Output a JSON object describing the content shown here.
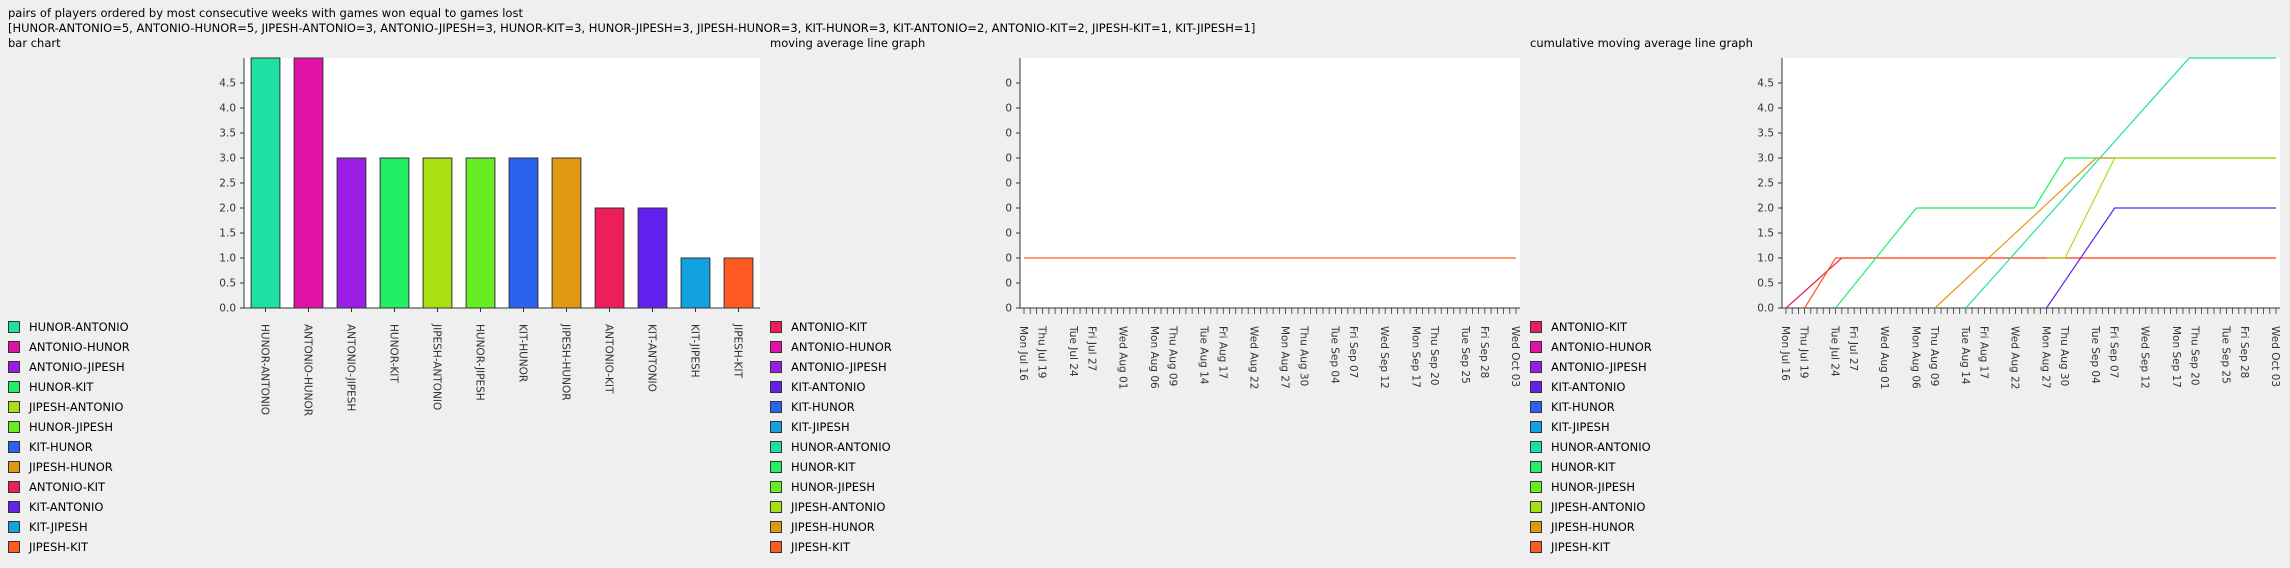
{
  "title": "pairs of players ordered by most consecutive weeks with games won equal to games lost",
  "subtitle": "[HUNOR-ANTONIO=5, ANTONIO-HUNOR=5, JIPESH-ANTONIO=3, ANTONIO-JIPESH=3, HUNOR-KIT=3, HUNOR-JIPESH=3, JIPESH-HUNOR=3, KIT-HUNOR=3, KIT-ANTONIO=2, ANTONIO-KIT=2, JIPESH-KIT=1, KIT-JIPESH=1]",
  "colors": {
    "HUNOR-ANTONIO": "#1ee0a4",
    "ANTONIO-HUNOR": "#e012a8",
    "ANTONIO-JIPESH": "#9a1ee6",
    "HUNOR-KIT": "#22ee66",
    "JIPESH-ANTONIO": "#a8e012",
    "HUNOR-JIPESH": "#66ee22",
    "KIT-HUNOR": "#2a64ee",
    "JIPESH-HUNOR": "#e09a12",
    "ANTONIO-KIT": "#ee1e5a",
    "KIT-ANTONIO": "#6222ee",
    "KIT-JIPESH": "#12a2e0",
    "JIPESH-KIT": "#ff5a22"
  },
  "panels": [
    {
      "title": "bar chart",
      "legend": [
        "HUNOR-ANTONIO",
        "ANTONIO-HUNOR",
        "ANTONIO-JIPESH",
        "HUNOR-KIT",
        "JIPESH-ANTONIO",
        "HUNOR-JIPESH",
        "KIT-HUNOR",
        "JIPESH-HUNOR",
        "ANTONIO-KIT",
        "KIT-ANTONIO",
        "KIT-JIPESH",
        "JIPESH-KIT"
      ]
    },
    {
      "title": "moving average line graph",
      "legend": [
        "ANTONIO-KIT",
        "ANTONIO-HUNOR",
        "ANTONIO-JIPESH",
        "KIT-ANTONIO",
        "KIT-HUNOR",
        "KIT-JIPESH",
        "HUNOR-ANTONIO",
        "HUNOR-KIT",
        "HUNOR-JIPESH",
        "JIPESH-ANTONIO",
        "JIPESH-HUNOR",
        "JIPESH-KIT"
      ]
    },
    {
      "title": "cumulative moving average line graph",
      "legend": [
        "ANTONIO-KIT",
        "ANTONIO-HUNOR",
        "ANTONIO-JIPESH",
        "KIT-ANTONIO",
        "KIT-HUNOR",
        "KIT-JIPESH",
        "HUNOR-ANTONIO",
        "HUNOR-KIT",
        "HUNOR-JIPESH",
        "JIPESH-ANTONIO",
        "JIPESH-HUNOR",
        "JIPESH-KIT"
      ]
    }
  ],
  "chart_data": [
    {
      "type": "bar",
      "title": "bar chart",
      "categories": [
        "HUNOR-ANTONIO",
        "ANTONIO-HUNOR",
        "ANTONIO-JIPESH",
        "HUNOR-KIT",
        "JIPESH-ANTONIO",
        "HUNOR-JIPESH",
        "KIT-HUNOR",
        "JIPESH-HUNOR",
        "ANTONIO-KIT",
        "KIT-ANTONIO",
        "KIT-JIPESH",
        "JIPESH-KIT"
      ],
      "values": [
        5,
        5,
        3,
        3,
        3,
        3,
        3,
        3,
        2,
        2,
        1,
        1
      ],
      "ylim": [
        0,
        5
      ],
      "yticks": [
        "0.0",
        "0.5",
        "1.0",
        "1.5",
        "2.0",
        "2.5",
        "3.0",
        "3.5",
        "4.0",
        "4.5"
      ],
      "grid": false,
      "legend": "bottom-left"
    },
    {
      "type": "line",
      "title": "moving average line graph",
      "x_ticks": [
        "Mon Jul 16",
        "Thu Jul 19",
        "Tue Jul 24",
        "Fri Jul 27",
        "Wed Aug 01",
        "Mon Aug 06",
        "Thu Aug 09",
        "Tue Aug 14",
        "Fri Aug 17",
        "Wed Aug 22",
        "Mon Aug 27",
        "Thu Aug 30",
        "Tue Sep 04",
        "Fri Sep 07",
        "Wed Sep 12",
        "Mon Sep 17",
        "Thu Sep 20",
        "Tue Sep 25",
        "Fri Sep 28",
        "Wed Oct 03"
      ],
      "yticks": [
        "0",
        "0",
        "0",
        "0",
        "0",
        "0",
        "0",
        "0",
        "0",
        "0"
      ],
      "xlim": [
        "Mon Jul 16",
        "Wed Oct 03"
      ],
      "series": [
        {
          "name": "JIPESH-KIT",
          "points": [
            [
              "Mon Jul 16",
              1
            ],
            [
              "Wed Oct 03",
              1
            ]
          ]
        }
      ],
      "grid": false,
      "legend": "bottom-left"
    },
    {
      "type": "line",
      "title": "cumulative moving average line graph",
      "x_ticks": [
        "Mon Jul 16",
        "Thu Jul 19",
        "Tue Jul 24",
        "Fri Jul 27",
        "Wed Aug 01",
        "Mon Aug 06",
        "Thu Aug 09",
        "Tue Aug 14",
        "Fri Aug 17",
        "Wed Aug 22",
        "Mon Aug 27",
        "Thu Aug 30",
        "Tue Sep 04",
        "Fri Sep 07",
        "Wed Sep 12",
        "Mon Sep 17",
        "Thu Sep 20",
        "Tue Sep 25",
        "Fri Sep 28",
        "Wed Oct 03"
      ],
      "yticks": [
        "0.0",
        "0.5",
        "1.0",
        "1.5",
        "2.0",
        "2.5",
        "3.0",
        "3.5",
        "4.0",
        "4.5"
      ],
      "ylim": [
        0,
        5
      ],
      "xlim": [
        "Mon Jul 16",
        "Wed Oct 03"
      ],
      "series": [
        {
          "name": "ANTONIO-KIT",
          "points": [
            [
              "Mon Jul 16",
              0
            ],
            [
              "Mon Jul 16",
              0
            ],
            [
              "Wed Jul 25",
              1
            ],
            [
              "Wed Oct 03",
              1
            ]
          ]
        },
        {
          "name": "JIPESH-KIT",
          "points": [
            [
              "Thu Jul 19",
              0
            ],
            [
              "Tue Jul 24",
              1
            ],
            [
              "Wed Oct 03",
              1
            ]
          ]
        },
        {
          "name": "HUNOR-KIT",
          "points": [
            [
              "Tue Jul 24",
              0
            ],
            [
              "Mon Aug 06",
              2
            ],
            [
              "Sat Aug 25",
              2
            ],
            [
              "Thu Aug 30",
              3
            ],
            [
              "Wed Oct 03",
              3
            ]
          ]
        },
        {
          "name": "HUNOR-ANTONIO",
          "points": [
            [
              "Tue Aug 14",
              0
            ],
            [
              "Wed Sep 19",
              5
            ],
            [
              "Wed Oct 03",
              5
            ]
          ]
        },
        {
          "name": "JIPESH-HUNOR",
          "points": [
            [
              "Thu Aug 09",
              0
            ],
            [
              "Tue Sep 04",
              3
            ],
            [
              "Wed Oct 03",
              3
            ]
          ]
        },
        {
          "name": "JIPESH-ANTONIO",
          "points": [
            [
              "Mon Aug 27",
              1
            ],
            [
              "Thu Aug 30",
              1
            ],
            [
              "Fri Sep 07",
              3
            ],
            [
              "Wed Oct 03",
              3
            ]
          ]
        },
        {
          "name": "KIT-ANTONIO",
          "points": [
            [
              "Mon Aug 27",
              0
            ],
            [
              "Fri Sep 07",
              2
            ],
            [
              "Wed Oct 03",
              2
            ]
          ]
        }
      ],
      "grid": false,
      "legend": "bottom-left"
    }
  ]
}
